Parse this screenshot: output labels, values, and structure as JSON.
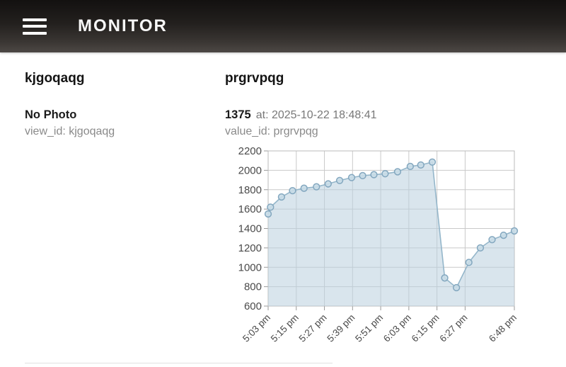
{
  "header": {
    "title": "MONITOR",
    "menu_icon": "hamburger-icon"
  },
  "view": {
    "name": "kjgoqaqg",
    "photo_status": "No Photo",
    "view_id_label": "view_id: kjgoqaqg"
  },
  "value": {
    "name": "prgrvpqg",
    "current_value": "1375",
    "at_label": "at: 2025-10-22 18:48:41",
    "value_id_label": "value_id: prgrvpqg"
  },
  "chart_data": {
    "type": "area",
    "title": "",
    "xlabel": "",
    "ylabel": "",
    "grid": true,
    "legend": false,
    "ylim": [
      600,
      2200
    ],
    "ytick_step": 200,
    "xlim_minutes": [
      0,
      105
    ],
    "xticks": [
      {
        "label": "5:03 pm",
        "m": 0
      },
      {
        "label": "5:15 pm",
        "m": 12
      },
      {
        "label": "5:27 pm",
        "m": 24
      },
      {
        "label": "5:39 pm",
        "m": 36
      },
      {
        "label": "5:51 pm",
        "m": 48
      },
      {
        "label": "6:03 pm",
        "m": 60
      },
      {
        "label": "6:15 pm",
        "m": 72
      },
      {
        "label": "6:27 pm",
        "m": 84
      },
      {
        "label": "6:48 pm",
        "m": 105
      }
    ],
    "series": [
      {
        "name": "prgrvpqg",
        "points": [
          {
            "t": "5:03 pm",
            "m": 0,
            "v": 1550
          },
          {
            "t": "5:04 pm",
            "m": 1,
            "v": 1620
          },
          {
            "t": "5:09 pm",
            "m": 5.7,
            "v": 1725
          },
          {
            "t": "5:13 pm",
            "m": 10.4,
            "v": 1790
          },
          {
            "t": "5:18 pm",
            "m": 15.3,
            "v": 1815
          },
          {
            "t": "5:24 pm",
            "m": 20.6,
            "v": 1830
          },
          {
            "t": "5:29 pm",
            "m": 25.6,
            "v": 1860
          },
          {
            "t": "5:33 pm",
            "m": 30.5,
            "v": 1895
          },
          {
            "t": "5:39 pm",
            "m": 35.6,
            "v": 1925
          },
          {
            "t": "5:43 pm",
            "m": 40.3,
            "v": 1945
          },
          {
            "t": "5:48 pm",
            "m": 45.1,
            "v": 1955
          },
          {
            "t": "5:53 pm",
            "m": 49.9,
            "v": 1965
          },
          {
            "t": "5:58 pm",
            "m": 55.2,
            "v": 1985
          },
          {
            "t": "6:04 pm",
            "m": 60.6,
            "v": 2040
          },
          {
            "t": "6:08 pm",
            "m": 65.1,
            "v": 2055
          },
          {
            "t": "6:13 pm",
            "m": 70.0,
            "v": 2085
          },
          {
            "t": "6:18 pm",
            "m": 75.3,
            "v": 890
          },
          {
            "t": "6:23 pm",
            "m": 80.3,
            "v": 790
          },
          {
            "t": "6:29 pm",
            "m": 85.6,
            "v": 1050
          },
          {
            "t": "6:33 pm",
            "m": 90.5,
            "v": 1200
          },
          {
            "t": "6:38 pm",
            "m": 95.5,
            "v": 1285
          },
          {
            "t": "6:43 pm",
            "m": 100.4,
            "v": 1330
          },
          {
            "t": "6:48 pm",
            "m": 105,
            "v": 1375
          }
        ]
      }
    ],
    "colors": {
      "line": "#94b6ca",
      "area": "#b9d0de",
      "marker_fill": "#c8dce7",
      "marker_stroke": "#83a7bf",
      "grid": "#c9c9c9",
      "border": "#bbbbbb",
      "tick": "#999999",
      "tick_text": "#4a4a4a"
    }
  }
}
